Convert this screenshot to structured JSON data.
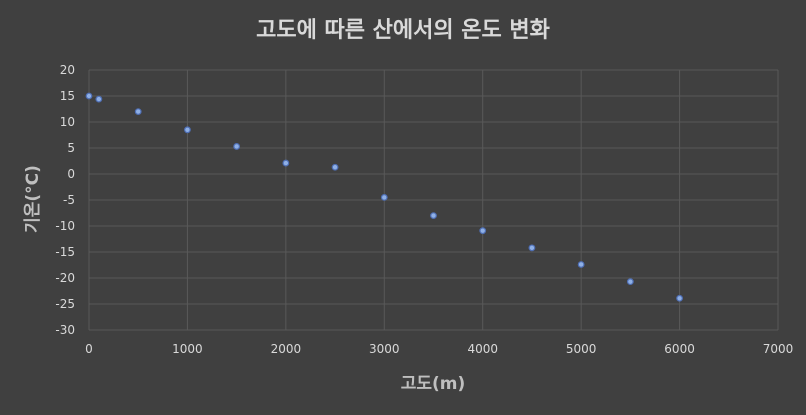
{
  "chart_data": {
    "type": "scatter",
    "title": "고도에 따른 산에서의 온도 변화",
    "xlabel": "고도(m)",
    "ylabel": "기온(°C)",
    "xlim": [
      0,
      7000
    ],
    "ylim": [
      -30,
      20
    ],
    "xticks": [
      0,
      1000,
      2000,
      3000,
      4000,
      5000,
      6000,
      7000
    ],
    "yticks": [
      20,
      15,
      10,
      5,
      0,
      -5,
      -10,
      -15,
      -20,
      -25,
      -30
    ],
    "grid": true,
    "legend": "none",
    "marker_color": "#8fb0e6",
    "background": "#404040",
    "series": [
      {
        "points": [
          {
            "x": 0,
            "y": 15
          },
          {
            "x": 100,
            "y": 14.4
          },
          {
            "x": 500,
            "y": 12
          },
          {
            "x": 1000,
            "y": 8.5
          },
          {
            "x": 1500,
            "y": 5.3
          },
          {
            "x": 2000,
            "y": 2.1
          },
          {
            "x": 2500,
            "y": 1.3
          },
          {
            "x": 3000,
            "y": -4.5
          },
          {
            "x": 3500,
            "y": -8
          },
          {
            "x": 4000,
            "y": -10.9
          },
          {
            "x": 4500,
            "y": -14.2
          },
          {
            "x": 5000,
            "y": -17.4
          },
          {
            "x": 5500,
            "y": -20.7
          },
          {
            "x": 6000,
            "y": -23.9
          }
        ]
      }
    ]
  }
}
